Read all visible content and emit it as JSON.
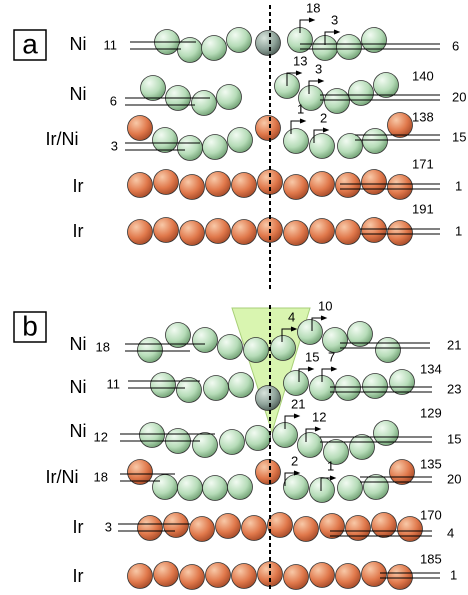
{
  "panels": [
    {
      "label": "a",
      "rows": [
        {
          "element": "Ni",
          "numbers": [
            11,
            6,
            18,
            3
          ]
        },
        {
          "element": "Ni",
          "numbers": [
            6,
            13,
            3,
            140,
            20
          ]
        },
        {
          "element": "Ir/Ni",
          "numbers": [
            3,
            1,
            2,
            138,
            15
          ]
        },
        {
          "element": "Ir",
          "numbers": [
            171,
            1
          ]
        },
        {
          "element": "Ir",
          "numbers": [
            191,
            1
          ]
        }
      ]
    },
    {
      "label": "b",
      "rows": [
        {
          "element": "Ni",
          "numbers": [
            18,
            4,
            10,
            21
          ]
        },
        {
          "element": "Ni",
          "numbers": [
            11,
            15,
            7,
            134,
            23
          ]
        },
        {
          "element": "Ni",
          "numbers": [
            12,
            21,
            12,
            129,
            15
          ]
        },
        {
          "element": "Ir/Ni",
          "numbers": [
            18,
            2,
            1,
            135,
            20
          ]
        },
        {
          "element": "Ir",
          "numbers": [
            3,
            170,
            4
          ]
        },
        {
          "element": "Ir",
          "numbers": [
            185,
            1
          ]
        }
      ]
    }
  ]
}
